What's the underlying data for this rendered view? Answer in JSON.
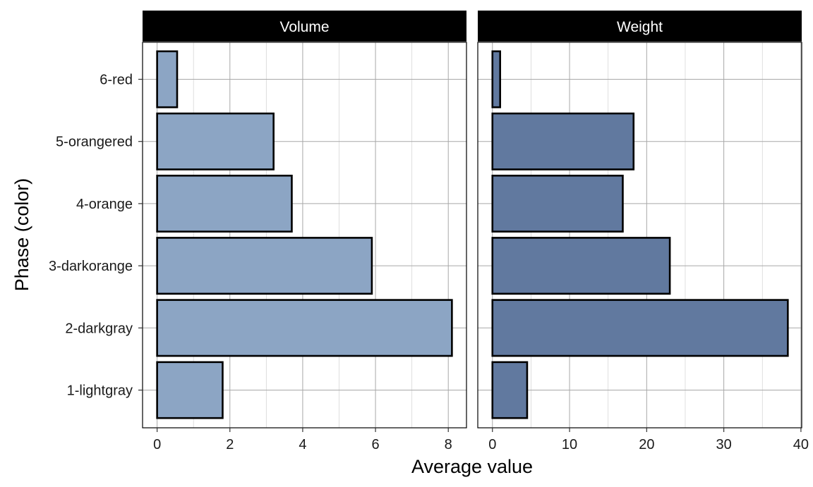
{
  "chart_data": {
    "type": "bar",
    "orientation": "horizontal",
    "facet_layout": "side-by-side",
    "xlabel": "Average value",
    "ylabel": "Phase (color)",
    "categories": [
      "1-lightgray",
      "2-darkgray",
      "3-darkorange",
      "4-orange",
      "5-orangered",
      "6-red"
    ],
    "grid": true,
    "bar_outline_color": "#000000",
    "strip_background": "#000000",
    "strip_text_color": "#ffffff",
    "panels": [
      {
        "name": "Volume",
        "fill": "#8ca5c4",
        "values": [
          1.8,
          8.1,
          5.9,
          3.7,
          3.2,
          0.55
        ],
        "xlim": [
          -0.4,
          8.5
        ],
        "xticks": [
          0,
          2,
          4,
          6,
          8
        ],
        "minor_ticks": [
          1,
          3,
          5,
          7
        ]
      },
      {
        "name": "Weight",
        "fill": "#61799f",
        "values": [
          4.5,
          38.3,
          23.0,
          16.9,
          18.3,
          1.0
        ],
        "xlim": [
          -1.9,
          40.1
        ],
        "xticks": [
          0,
          10,
          20,
          30,
          40
        ],
        "minor_ticks": [
          5,
          15,
          25,
          35
        ]
      }
    ]
  }
}
